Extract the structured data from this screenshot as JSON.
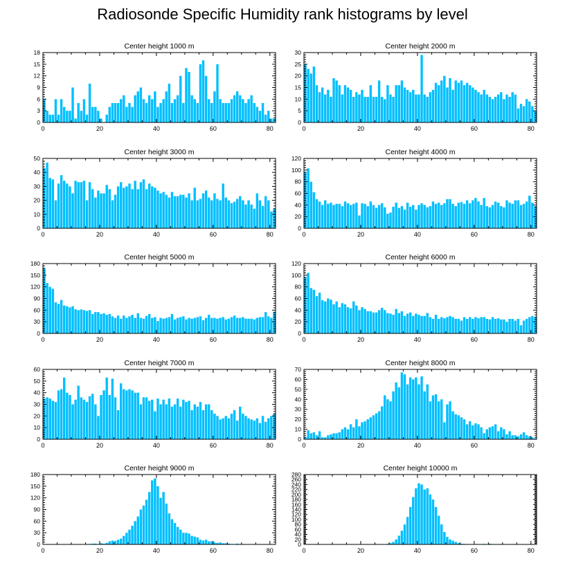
{
  "title": "Radiosonde Specific Humidity rank histograms by level",
  "colors": {
    "bar": "#00BFFF",
    "bar_stroke": "#ffffff",
    "axis": "#000000",
    "background": "#ffffff"
  },
  "chart_data": [
    {
      "type": "bar",
      "title": "Center height 1000 m",
      "xlim": [
        0,
        82
      ],
      "ylim": [
        0,
        18
      ],
      "x_ticks": [
        0,
        20,
        40,
        60,
        80
      ],
      "y_ticks": [
        0,
        3,
        6,
        9,
        12,
        15,
        18
      ],
      "values": [
        6,
        3,
        2,
        2,
        6,
        2,
        6,
        4,
        3,
        3,
        9,
        1,
        5,
        3,
        6,
        2,
        10,
        4,
        4,
        3,
        1,
        0,
        2,
        4,
        5,
        5,
        5,
        6,
        7,
        4,
        5,
        4,
        7,
        8,
        9,
        6,
        5,
        7,
        6,
        8,
        4,
        5,
        6,
        8,
        10,
        5,
        6,
        7,
        12,
        5,
        14,
        13,
        7,
        6,
        5,
        15,
        16,
        12,
        6,
        5,
        8,
        15,
        6,
        5,
        5,
        5,
        6,
        7,
        8,
        7,
        6,
        5,
        6,
        7,
        5,
        4,
        3,
        5,
        2,
        3,
        1,
        1
      ]
    },
    {
      "type": "bar",
      "title": "Center height 2000 m",
      "xlim": [
        0,
        82
      ],
      "ylim": [
        0,
        30
      ],
      "x_ticks": [
        0,
        20,
        40,
        60,
        80
      ],
      "y_ticks": [
        0,
        5,
        10,
        15,
        20,
        25,
        30
      ],
      "values": [
        25,
        23,
        21,
        24,
        16,
        13,
        15,
        12,
        14,
        11,
        19,
        18,
        16,
        12,
        16,
        15,
        14,
        11,
        13,
        12,
        14,
        11,
        11,
        16,
        11,
        11,
        18,
        11,
        10,
        16,
        12,
        11,
        16,
        16,
        18,
        15,
        14,
        13,
        14,
        12,
        12,
        29,
        12,
        11,
        13,
        14,
        17,
        16,
        18,
        20,
        15,
        19,
        14,
        18,
        17,
        18,
        16,
        17,
        16,
        15,
        14,
        13,
        12,
        14,
        12,
        11,
        10,
        11,
        12,
        13,
        10,
        12,
        11,
        13,
        12,
        6,
        8,
        7,
        10,
        9,
        7,
        5
      ]
    },
    {
      "type": "bar",
      "title": "Center height 3000 m",
      "xlim": [
        0,
        82
      ],
      "ylim": [
        0,
        50
      ],
      "x_ticks": [
        0,
        20,
        40,
        60,
        80
      ],
      "y_ticks": [
        0,
        10,
        20,
        30,
        40,
        50
      ],
      "values": [
        43,
        47,
        36,
        35,
        20,
        32,
        38,
        34,
        32,
        30,
        25,
        34,
        33,
        33,
        34,
        20,
        33,
        28,
        22,
        27,
        25,
        25,
        31,
        28,
        20,
        24,
        30,
        33,
        29,
        30,
        32,
        28,
        34,
        28,
        33,
        35,
        28,
        32,
        30,
        29,
        27,
        25,
        26,
        24,
        22,
        26,
        23,
        23,
        24,
        24,
        22,
        25,
        20,
        29,
        20,
        21,
        25,
        27,
        22,
        20,
        25,
        21,
        20,
        32,
        22,
        20,
        18,
        19,
        21,
        23,
        20,
        17,
        20,
        17,
        14,
        25,
        20,
        16,
        23,
        20,
        12,
        14
      ]
    },
    {
      "type": "bar",
      "title": "Center height 4000 m",
      "xlim": [
        0,
        82
      ],
      "ylim": [
        0,
        120
      ],
      "x_ticks": [
        0,
        20,
        40,
        60,
        80
      ],
      "y_ticks": [
        0,
        20,
        40,
        60,
        80,
        100,
        120
      ],
      "values": [
        97,
        103,
        80,
        62,
        50,
        46,
        40,
        48,
        42,
        44,
        40,
        42,
        42,
        38,
        46,
        43,
        40,
        42,
        44,
        22,
        43,
        42,
        38,
        46,
        40,
        35,
        40,
        43,
        36,
        25,
        27,
        37,
        44,
        35,
        38,
        32,
        44,
        37,
        40,
        32,
        40,
        43,
        40,
        36,
        38,
        46,
        42,
        44,
        40,
        43,
        50,
        50,
        42,
        38,
        44,
        45,
        42,
        48,
        43,
        48,
        52,
        46,
        40,
        52,
        38,
        36,
        40,
        46,
        44,
        38,
        36,
        48,
        44,
        42,
        48,
        48,
        40,
        42,
        46,
        56,
        44,
        38
      ]
    },
    {
      "type": "bar",
      "title": "Center height 5000 m",
      "xlim": [
        0,
        82
      ],
      "ylim": [
        0,
        180
      ],
      "x_ticks": [
        0,
        20,
        40,
        60,
        80
      ],
      "y_ticks": [
        0,
        30,
        60,
        90,
        120,
        150,
        180
      ],
      "values": [
        168,
        130,
        120,
        115,
        80,
        76,
        86,
        72,
        70,
        67,
        70,
        62,
        60,
        62,
        60,
        58,
        60,
        50,
        55,
        55,
        50,
        52,
        48,
        50,
        44,
        40,
        46,
        38,
        46,
        40,
        44,
        48,
        40,
        52,
        40,
        38,
        45,
        50,
        40,
        42,
        32,
        40,
        38,
        40,
        42,
        50,
        36,
        40,
        42,
        44,
        36,
        40,
        38,
        40,
        42,
        44,
        34,
        40,
        48,
        40,
        40,
        38,
        40,
        42,
        36,
        38,
        42,
        46,
        40,
        40,
        42,
        38,
        38,
        38,
        36,
        40,
        42,
        42,
        55,
        44,
        40,
        56
      ]
    },
    {
      "type": "bar",
      "title": "Center height 6000 m",
      "xlim": [
        0,
        82
      ],
      "ylim": [
        0,
        120
      ],
      "x_ticks": [
        0,
        20,
        40,
        60,
        80
      ],
      "y_ticks": [
        0,
        20,
        40,
        60,
        80,
        100,
        120
      ],
      "values": [
        97,
        104,
        78,
        75,
        64,
        70,
        57,
        55,
        60,
        58,
        50,
        55,
        45,
        52,
        50,
        45,
        43,
        55,
        48,
        40,
        45,
        42,
        38,
        38,
        36,
        36,
        40,
        44,
        40,
        35,
        34,
        32,
        42,
        35,
        38,
        30,
        34,
        36,
        30,
        34,
        32,
        30,
        30,
        35,
        28,
        25,
        32,
        25,
        28,
        26,
        28,
        30,
        28,
        25,
        25,
        22,
        28,
        25,
        28,
        25,
        28,
        26,
        28,
        28,
        25,
        24,
        28,
        25,
        26,
        24,
        24,
        20,
        25,
        25,
        22,
        25,
        14,
        22,
        25,
        28,
        30,
        28
      ]
    },
    {
      "type": "bar",
      "title": "Center height 7000 m",
      "xlim": [
        0,
        82
      ],
      "ylim": [
        0,
        60
      ],
      "x_ticks": [
        0,
        20,
        40,
        60,
        80
      ],
      "y_ticks": [
        0,
        10,
        20,
        30,
        40,
        50,
        60
      ],
      "values": [
        35,
        36,
        35,
        33,
        32,
        42,
        43,
        53,
        40,
        38,
        30,
        34,
        46,
        36,
        34,
        32,
        37,
        39,
        30,
        20,
        38,
        42,
        53,
        38,
        52,
        36,
        25,
        48,
        43,
        42,
        43,
        42,
        40,
        40,
        30,
        36,
        36,
        33,
        34,
        24,
        35,
        30,
        34,
        30,
        35,
        28,
        30,
        35,
        28,
        34,
        32,
        33,
        25,
        30,
        28,
        32,
        25,
        30,
        30,
        25,
        22,
        20,
        17,
        18,
        20,
        18,
        22,
        25,
        16,
        28,
        22,
        20,
        18,
        17,
        16,
        18,
        14,
        20,
        15,
        18,
        20,
        22
      ]
    },
    {
      "type": "bar",
      "title": "Center height 8000 m",
      "xlim": [
        0,
        82
      ],
      "ylim": [
        0,
        70
      ],
      "x_ticks": [
        0,
        20,
        40,
        60,
        80
      ],
      "y_ticks": [
        0,
        10,
        20,
        30,
        40,
        50,
        60,
        70
      ],
      "values": [
        2,
        9,
        6,
        7,
        4,
        8,
        2,
        2,
        4,
        5,
        6,
        6,
        7,
        10,
        12,
        10,
        15,
        12,
        20,
        13,
        17,
        18,
        20,
        22,
        24,
        26,
        28,
        33,
        44,
        40,
        38,
        48,
        57,
        52,
        67,
        65,
        55,
        62,
        60,
        62,
        55,
        63,
        48,
        55,
        38,
        44,
        45,
        38,
        40,
        17,
        35,
        38,
        28,
        25,
        24,
        22,
        20,
        15,
        18,
        14,
        16,
        15,
        12,
        6,
        10,
        12,
        13,
        15,
        8,
        12,
        10,
        5,
        8,
        4,
        4,
        3,
        5,
        7,
        4,
        3,
        2,
        1
      ]
    },
    {
      "type": "bar",
      "title": "Center height 9000 m",
      "xlim": [
        0,
        82
      ],
      "ylim": [
        0,
        180
      ],
      "x_ticks": [
        0,
        20,
        40,
        60,
        80
      ],
      "y_ticks": [
        0,
        30,
        60,
        90,
        120,
        150,
        180
      ],
      "values": [
        0,
        0,
        0,
        0,
        0,
        0,
        0,
        0,
        0,
        0,
        0,
        0,
        0,
        0,
        0,
        0,
        1,
        2,
        2,
        1,
        3,
        2,
        4,
        8,
        10,
        9,
        12,
        15,
        22,
        30,
        38,
        48,
        60,
        72,
        90,
        100,
        115,
        135,
        165,
        170,
        150,
        120,
        135,
        105,
        80,
        65,
        55,
        45,
        38,
        30,
        30,
        28,
        22,
        20,
        18,
        12,
        10,
        12,
        8,
        8,
        5,
        4,
        5,
        3,
        3,
        2,
        1,
        1,
        2,
        1,
        0,
        1,
        0,
        0,
        0,
        0,
        0,
        0,
        0,
        0,
        0,
        0
      ]
    },
    {
      "type": "bar",
      "title": "Center height 10000 m",
      "xlim": [
        0,
        82
      ],
      "ylim": [
        0,
        280
      ],
      "x_ticks": [
        0,
        20,
        40,
        60,
        80
      ],
      "y_ticks": [
        0,
        20,
        40,
        60,
        80,
        100,
        120,
        140,
        160,
        180,
        200,
        220,
        240,
        260,
        280
      ],
      "values": [
        0,
        0,
        0,
        0,
        0,
        0,
        0,
        0,
        0,
        0,
        0,
        0,
        0,
        0,
        0,
        0,
        0,
        0,
        0,
        0,
        0,
        0,
        0,
        0,
        0,
        0,
        0,
        0,
        0,
        2,
        5,
        10,
        20,
        35,
        55,
        80,
        110,
        150,
        190,
        225,
        245,
        240,
        220,
        225,
        200,
        180,
        150,
        115,
        80,
        50,
        30,
        20,
        15,
        10,
        5,
        3,
        2,
        1,
        1,
        1,
        1,
        0,
        0,
        2,
        1,
        3,
        1,
        0,
        0,
        0,
        0,
        0,
        0,
        0,
        0,
        0,
        0,
        0,
        0,
        0,
        0,
        0
      ]
    }
  ]
}
